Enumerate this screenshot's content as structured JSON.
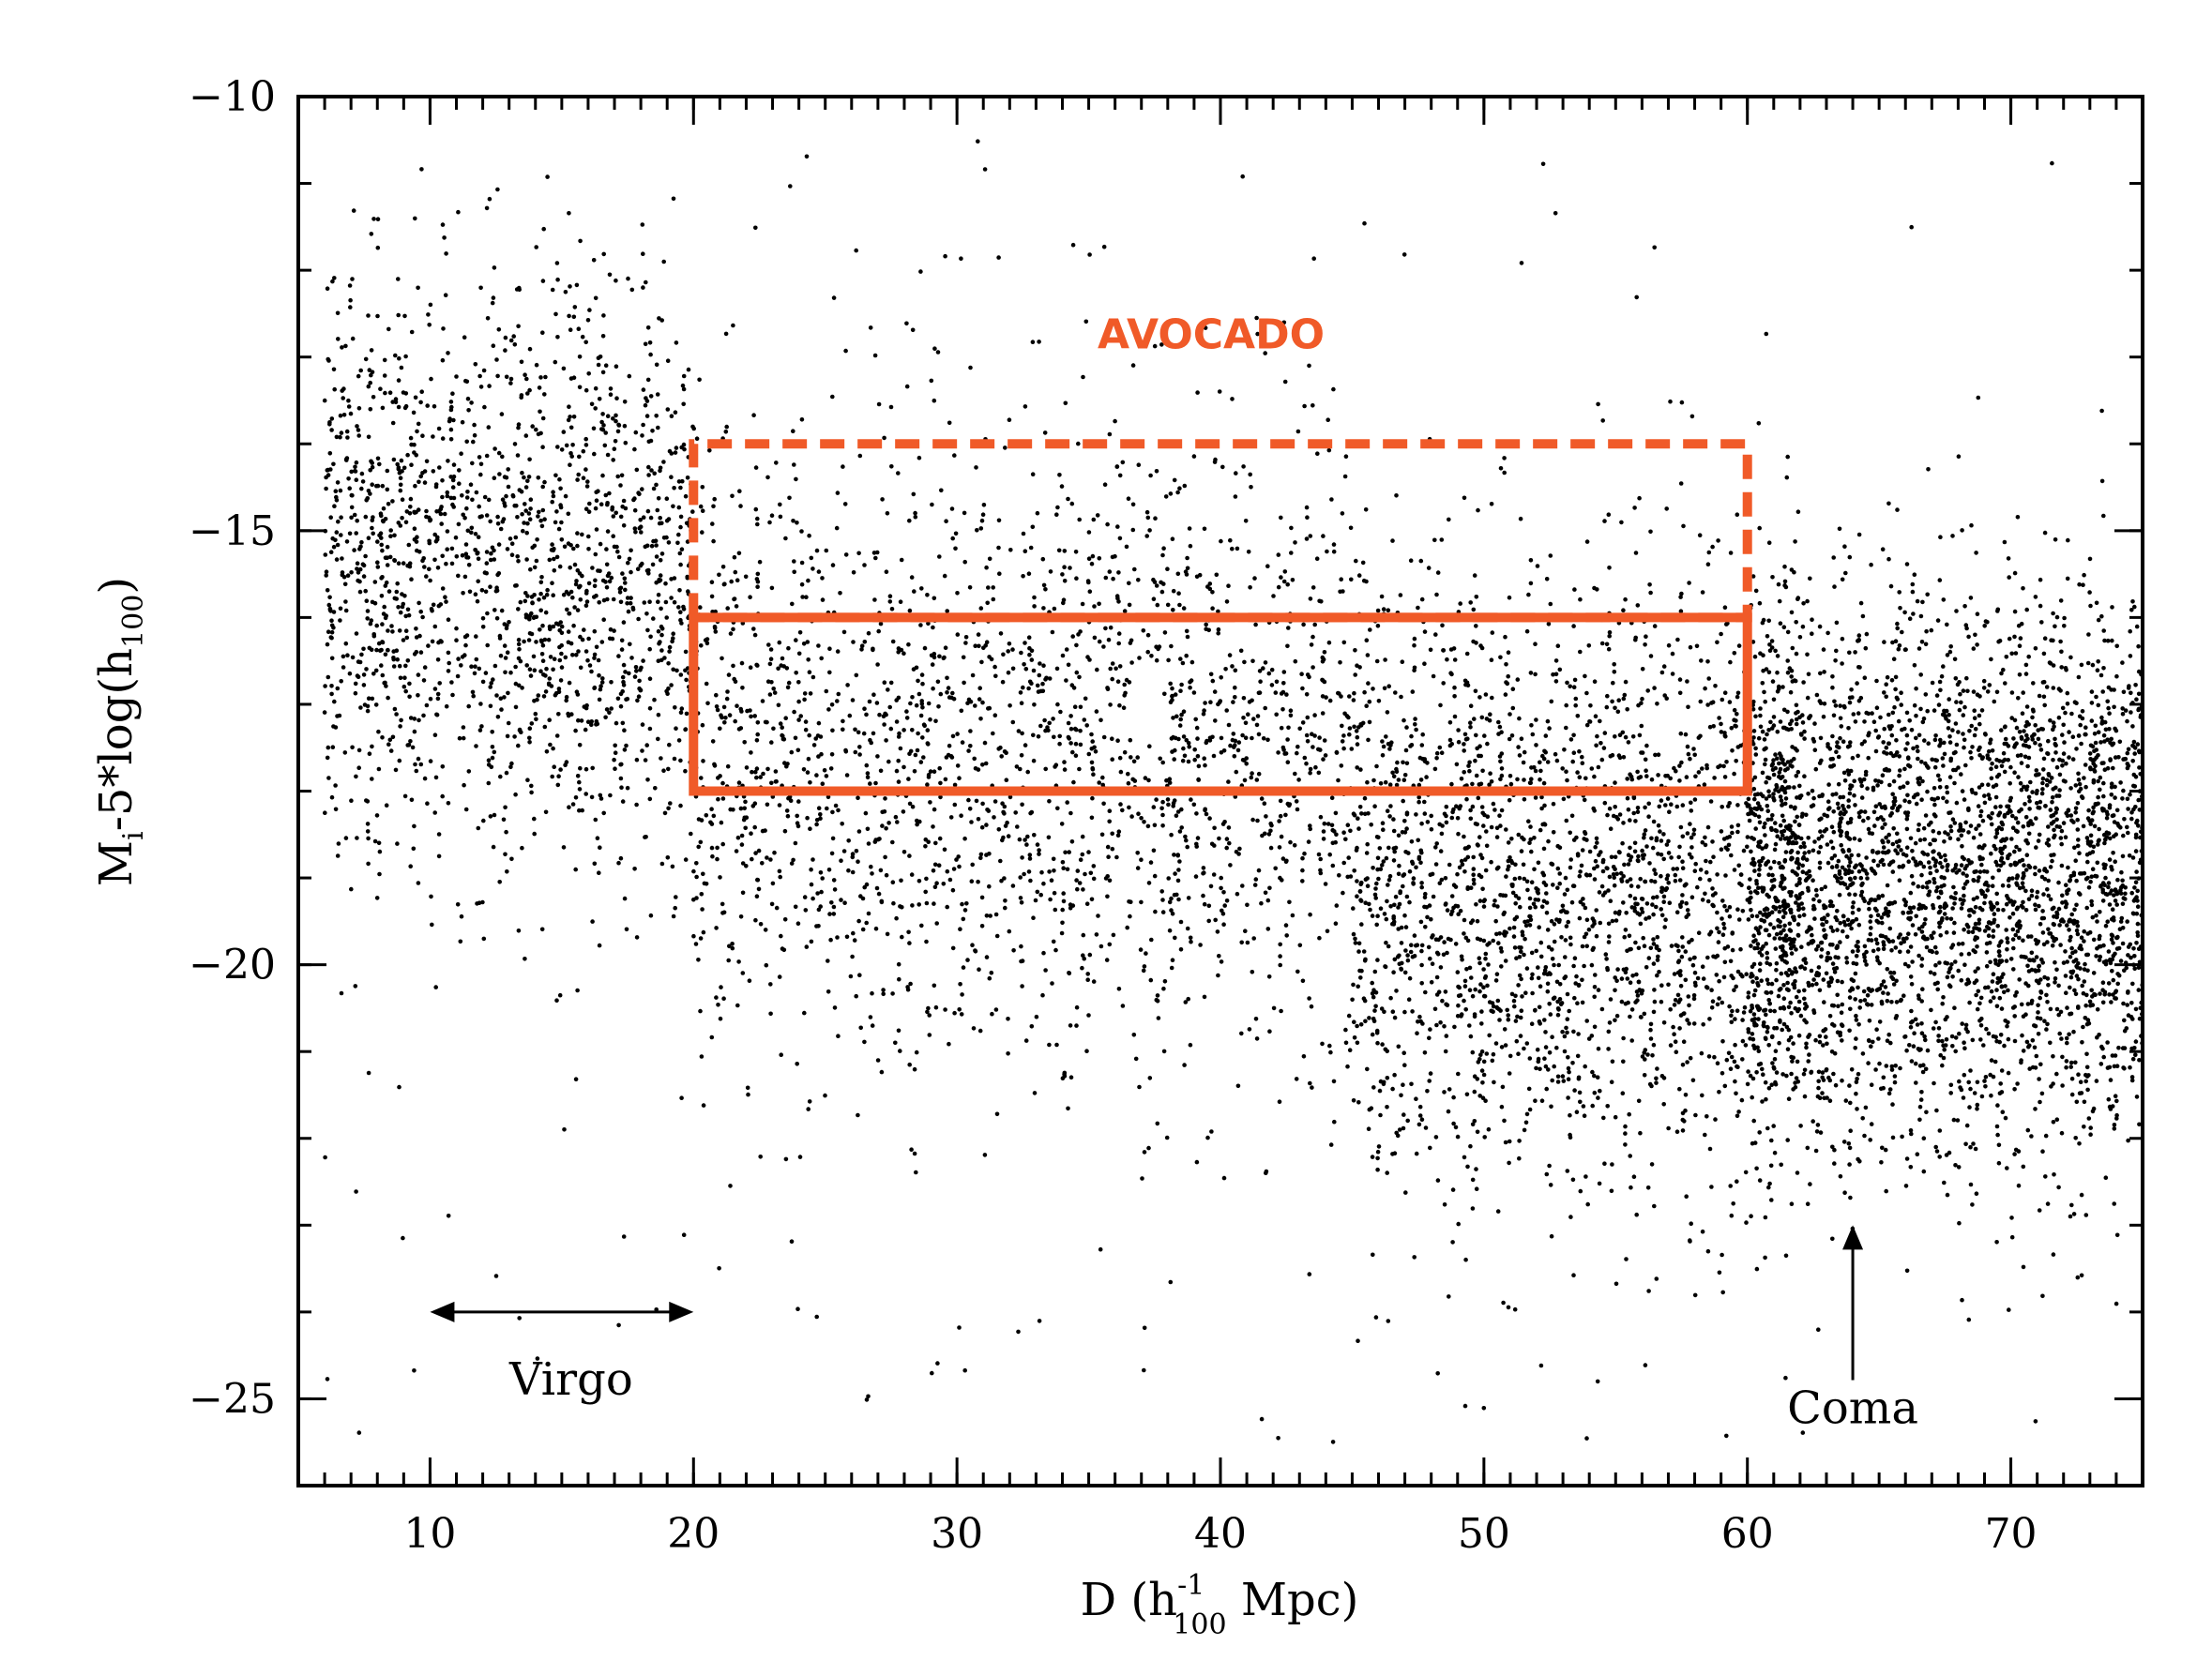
{
  "chart_data": {
    "type": "scatter",
    "title": "",
    "xlabel": {
      "main": "D (h",
      "sup": "-1",
      "sub": "100",
      "rest": " Mpc)"
    },
    "ylabel": {
      "main": "M",
      "sub1": "i",
      "mid": "-5*log(h",
      "sub2": "100",
      "rest": ")"
    },
    "xlim": [
      5,
      75
    ],
    "ylim": [
      -26,
      -10
    ],
    "x_ticks": [
      10,
      20,
      30,
      40,
      50,
      60,
      70
    ],
    "x_tick_labels": [
      "10",
      "20",
      "30",
      "40",
      "50",
      "60",
      "70"
    ],
    "y_ticks": [
      -10,
      -15,
      -20,
      -25
    ],
    "y_tick_labels": [
      "-10",
      "-15",
      "-20",
      "-25"
    ],
    "x_minor_step": 1,
    "y_minor_step": 1,
    "series": [
      {
        "name": "galaxies",
        "color": "#000000",
        "note": "dense point cloud of galaxies; density summarized by regions",
        "density_regions": [
          {
            "x": [
              6,
              20
            ],
            "y": [
              -21,
              -12.5
            ],
            "center_y": -15.5,
            "weight": 0.18
          },
          {
            "x": [
              20,
              45
            ],
            "y": [
              -22,
              -13
            ],
            "center_y": -17.5,
            "weight": 0.22
          },
          {
            "x": [
              45,
              62
            ],
            "y": [
              -23,
              -14
            ],
            "center_y": -19.0,
            "weight": 0.25
          },
          {
            "x": [
              60,
              75
            ],
            "y": [
              -23,
              -15
            ],
            "center_y": -19.0,
            "weight": 0.35
          }
        ]
      }
    ],
    "box": {
      "label": "AVOCADO",
      "color": "#f05a28",
      "x": [
        20,
        60
      ],
      "solid_y": [
        -16,
        -18
      ],
      "dashed_y": [
        -14,
        -16
      ]
    },
    "annotations": [
      {
        "text": "Virgo",
        "arrow": "double-horizontal",
        "x_range": [
          10,
          20
        ],
        "y": -24
      },
      {
        "text": "Coma",
        "arrow": "up",
        "x": 64,
        "y_from": -25.0,
        "y_to": -23.0
      }
    ]
  }
}
